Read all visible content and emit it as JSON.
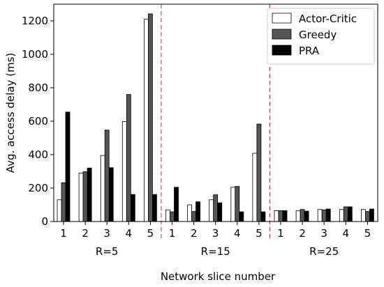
{
  "chart_data": {
    "type": "bar",
    "xlabel": "Network slice number",
    "ylabel": "Avg. access delay (ms)",
    "ylim": [
      0,
      1300
    ],
    "yticks": [
      0,
      200,
      400,
      600,
      800,
      1000,
      1200
    ],
    "grid": false,
    "legend_position": "top-right",
    "groups": [
      {
        "label": "R=5",
        "categories": [
          "1",
          "2",
          "3",
          "4",
          "5"
        ]
      },
      {
        "label": "R=15",
        "categories": [
          "1",
          "2",
          "3",
          "4",
          "5"
        ]
      },
      {
        "label": "R=25",
        "categories": [
          "1",
          "2",
          "3",
          "4",
          "5"
        ]
      }
    ],
    "series": [
      {
        "name": "Actor-Critic",
        "color": "#ffffff",
        "values": [
          130,
          290,
          395,
          598,
          1210,
          70,
          100,
          130,
          205,
          408,
          65,
          65,
          72,
          72,
          72
        ]
      },
      {
        "name": "Greedy",
        "color": "#555555",
        "values": [
          232,
          298,
          547,
          760,
          1242,
          58,
          60,
          160,
          210,
          583,
          65,
          72,
          70,
          88,
          60
        ]
      },
      {
        "name": "PRA",
        "color": "#000000",
        "values": [
          655,
          320,
          322,
          162,
          162,
          205,
          118,
          112,
          58,
          58,
          65,
          62,
          75,
          88,
          75
        ]
      }
    ],
    "separator_color": "#d62728"
  }
}
